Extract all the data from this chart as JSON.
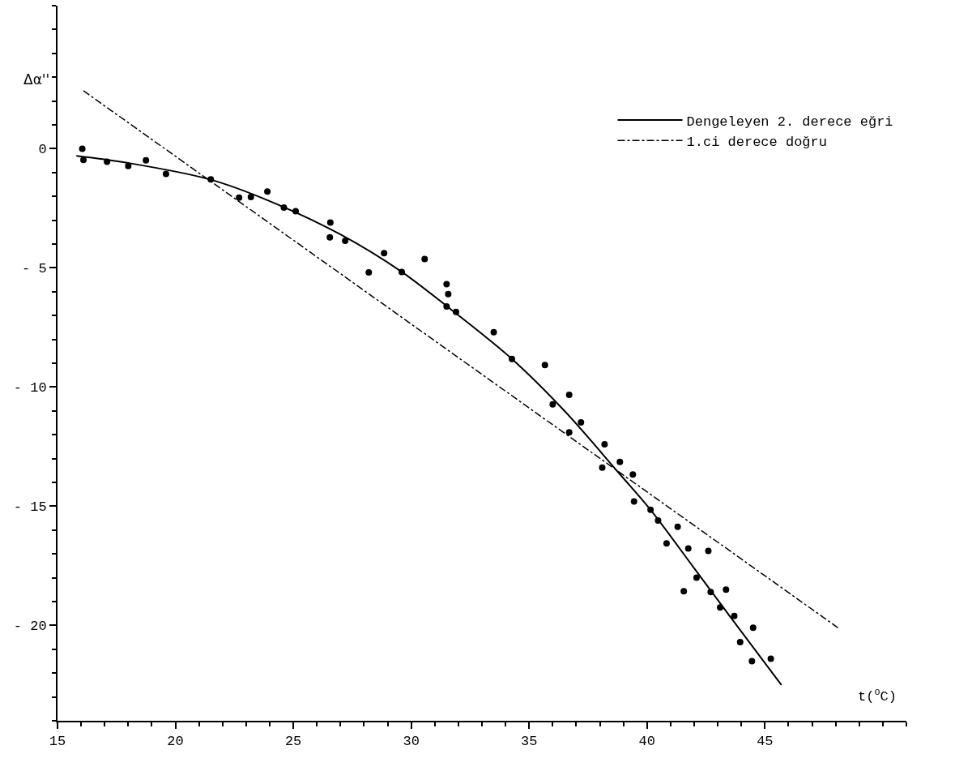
{
  "chart_data": {
    "type": "scatter",
    "xlabel": "t($^{o}$C)",
    "ylabel": "Δα''",
    "xlim": [
      15,
      51
    ],
    "ylim": [
      -24,
      6
    ],
    "xticks": [
      15,
      20,
      25,
      30,
      35,
      40,
      45
    ],
    "yticks": [
      0,
      {
        "value": -5,
        "label": "- 5"
      },
      {
        "value": -10,
        "label": "- 10"
      },
      {
        "value": -15,
        "label": "- 15"
      },
      {
        "value": -20,
        "label": "- 20"
      }
    ],
    "legend": "top right",
    "series": [
      {
        "marker": "circle",
        "color": "#000000",
        "x": [
          16.05,
          16.1,
          17.1,
          18.0,
          18.75,
          19.6,
          21.5,
          22.7,
          23.2,
          23.9,
          24.6,
          25.1,
          26.57,
          26.55,
          27.2,
          28.2,
          28.85,
          29.6,
          30.57,
          31.5,
          31.57,
          31.5,
          31.9,
          33.5,
          34.27,
          35.67,
          36.7,
          36.0,
          37.2,
          36.7,
          38.2,
          38.85,
          38.1,
          39.4,
          39.45,
          40.15,
          40.47,
          41.3,
          40.83,
          41.75,
          42.6,
          42.1,
          41.56,
          42.7,
          43.35,
          43.1,
          43.7,
          43.95,
          44.5,
          44.45,
          45.25
        ],
        "values": [
          0.0,
          -0.47,
          -0.55,
          -0.73,
          -0.49,
          -1.06,
          -1.29,
          -2.05,
          -2.03,
          -1.8,
          -2.47,
          -2.62,
          -3.1,
          -3.72,
          -3.86,
          -5.19,
          -4.38,
          -5.17,
          -4.63,
          -5.68,
          -6.1,
          -6.62,
          -6.85,
          -7.7,
          -8.82,
          -9.08,
          -10.33,
          -10.73,
          -11.48,
          -11.9,
          -12.4,
          -13.14,
          -13.38,
          -13.67,
          -14.8,
          -15.15,
          -15.6,
          -15.86,
          -16.56,
          -16.77,
          -16.87,
          -18.0,
          -18.57,
          -18.6,
          -18.5,
          -19.25,
          -19.6,
          -20.7,
          -20.1,
          -21.5,
          -21.4
        ]
      },
      {
        "type": "line",
        "marker": "none",
        "name": "Dengeleyen 2. derece eğri",
        "color": "#000000",
        "line_style": "solid",
        "x": [
          15.8,
          18,
          21.5,
          24,
          27,
          29.6,
          31.5,
          34.27,
          36.5,
          38.8,
          40.15,
          42,
          43.5,
          45.7
        ],
        "values": [
          -0.3,
          -0.6,
          -1.3,
          -2.2,
          -3.6,
          -5.17,
          -6.6,
          -8.82,
          -11.0,
          -13.6,
          -15.15,
          -17.6,
          -19.6,
          -22.5
        ]
      },
      {
        "type": "line",
        "marker": "none",
        "name": "1.ci derece doğru",
        "color": "#000000",
        "line_style": "dashdot",
        "x": [
          16.1,
          48.1
        ],
        "values": [
          2.43,
          -20.1
        ]
      }
    ]
  }
}
